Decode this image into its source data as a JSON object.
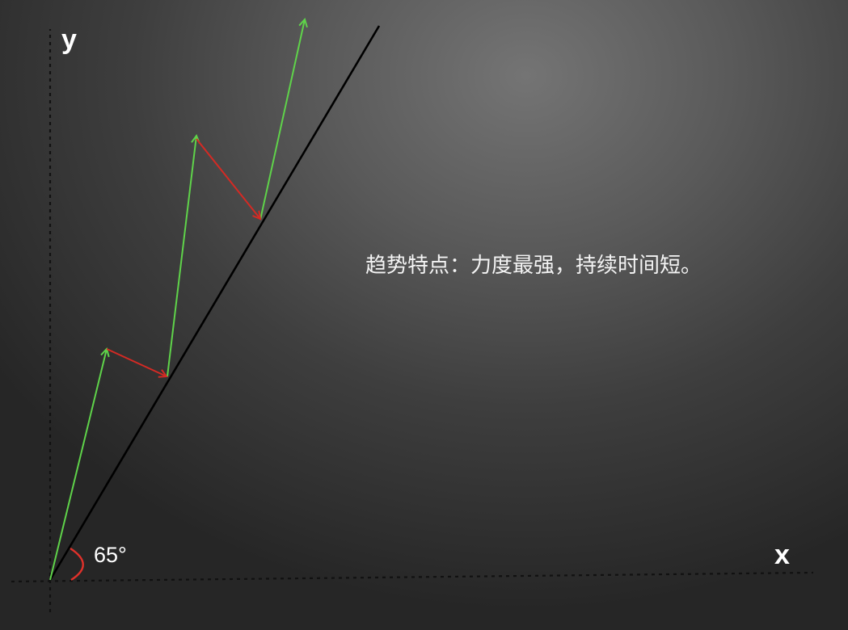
{
  "axes": {
    "x_label": "x",
    "y_label": "y"
  },
  "angle": {
    "label": "65°",
    "degrees": 65
  },
  "caption": "趋势特点：力度最强，持续时间短。",
  "colors": {
    "background": "#4a4a4a",
    "trend_line": "#000000",
    "impulse_arrow": "#5fd34a",
    "correction_arrow": "#d42a24",
    "angle_arc": "#e0312a",
    "axis": "#111111",
    "text": "#ffffff"
  }
}
